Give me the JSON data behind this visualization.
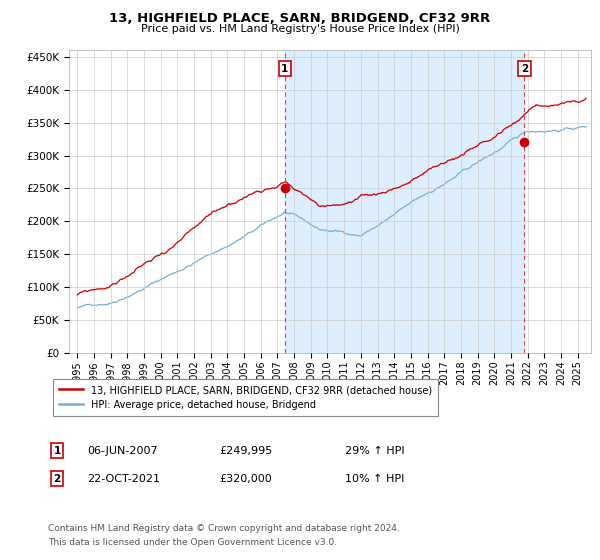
{
  "title": "13, HIGHFIELD PLACE, SARN, BRIDGEND, CF32 9RR",
  "subtitle": "Price paid vs. HM Land Registry's House Price Index (HPI)",
  "ylabel_ticks": [
    "£0",
    "£50K",
    "£100K",
    "£150K",
    "£200K",
    "£250K",
    "£300K",
    "£350K",
    "£400K",
    "£450K"
  ],
  "ytick_values": [
    0,
    50000,
    100000,
    150000,
    200000,
    250000,
    300000,
    350000,
    400000,
    450000
  ],
  "ylim": [
    0,
    460000
  ],
  "sale1_x": 2007.44,
  "sale1_y": 249995,
  "sale1_date": "06-JUN-2007",
  "sale1_price": "£249,995",
  "sale1_hpi": "29% ↑ HPI",
  "sale2_x": 2021.8,
  "sale2_y": 320000,
  "sale2_date": "22-OCT-2021",
  "sale2_price": "£320,000",
  "sale2_hpi": "10% ↑ HPI",
  "legend_property": "13, HIGHFIELD PLACE, SARN, BRIDGEND, CF32 9RR (detached house)",
  "legend_hpi": "HPI: Average price, detached house, Bridgend",
  "property_color": "#cc0000",
  "hpi_color": "#7aadd4",
  "shade_color": "#ddeeff",
  "dashed_line_color": "#dd4444",
  "footnote1": "Contains HM Land Registry data © Crown copyright and database right 2024.",
  "footnote2": "This data is licensed under the Open Government Licence v3.0.",
  "xlim_start": 1994.5,
  "xlim_end": 2025.8,
  "xtick_years": [
    1995,
    1996,
    1997,
    1998,
    1999,
    2000,
    2001,
    2002,
    2003,
    2004,
    2005,
    2006,
    2007,
    2008,
    2009,
    2010,
    2011,
    2012,
    2013,
    2014,
    2015,
    2016,
    2017,
    2018,
    2019,
    2020,
    2021,
    2022,
    2023,
    2024,
    2025
  ]
}
